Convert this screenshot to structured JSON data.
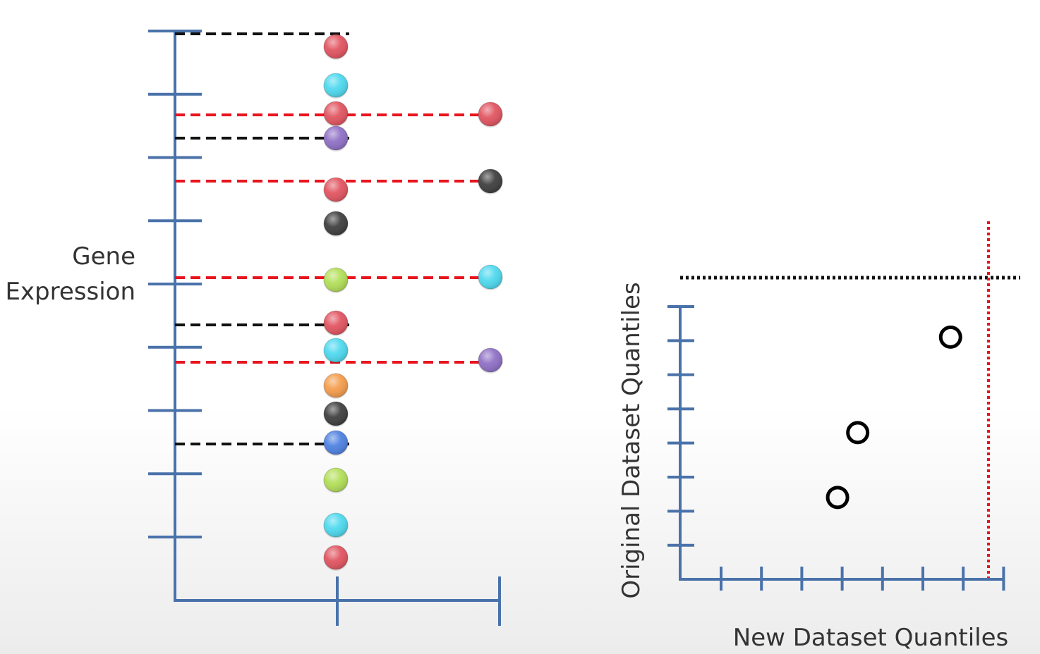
{
  "left_plot": {
    "axis_label_line1": "Gene",
    "axis_label_line2": "Expression",
    "x_tick_count": 2,
    "y_tick_count": 9,
    "axis_color": "#4a72aa",
    "original_column": [
      {
        "rank": 1,
        "color": "red"
      },
      {
        "rank": 2,
        "color": "cyan"
      },
      {
        "rank": 3,
        "color": "red"
      },
      {
        "rank": 4,
        "color": "purple"
      },
      {
        "rank": 5,
        "color": "red"
      },
      {
        "rank": 6,
        "color": "black"
      },
      {
        "rank": 7,
        "color": "green"
      },
      {
        "rank": 8,
        "color": "red"
      },
      {
        "rank": 9,
        "color": "cyan"
      },
      {
        "rank": 10,
        "color": "orange"
      },
      {
        "rank": 11,
        "color": "black"
      },
      {
        "rank": 12,
        "color": "blue"
      },
      {
        "rank": 13,
        "color": "green"
      },
      {
        "rank": 14,
        "color": "cyan"
      },
      {
        "rank": 15,
        "color": "red"
      }
    ],
    "new_column": [
      {
        "color": "red"
      },
      {
        "color": "black"
      },
      {
        "color": "cyan"
      },
      {
        "color": "purple"
      }
    ],
    "black_quantile_lines": 4,
    "red_quantile_lines": 4
  },
  "right_plot": {
    "x_label": "New Dataset Quantiles",
    "y_label": "Original Dataset Quantiles",
    "x_tick_count": 8,
    "y_tick_count": 8,
    "axis_color": "#4a72aa",
    "points": [
      {
        "x": 3.9,
        "y": 2.4
      },
      {
        "x": 4.4,
        "y": 4.3
      },
      {
        "x": 6.7,
        "y": 7.1
      }
    ],
    "horizontal_guide": "black-dotted",
    "vertical_guide": "red-dotted"
  },
  "colors": {
    "red": "#e0505c",
    "cyan": "#4ad8ee",
    "purple": "#8c6cc4",
    "black": "#3a3a3a",
    "green": "#b0de54",
    "orange": "#f49a48",
    "blue": "#4a7ee0",
    "dash_red": "#e8141e",
    "dash_black": "#111111"
  }
}
